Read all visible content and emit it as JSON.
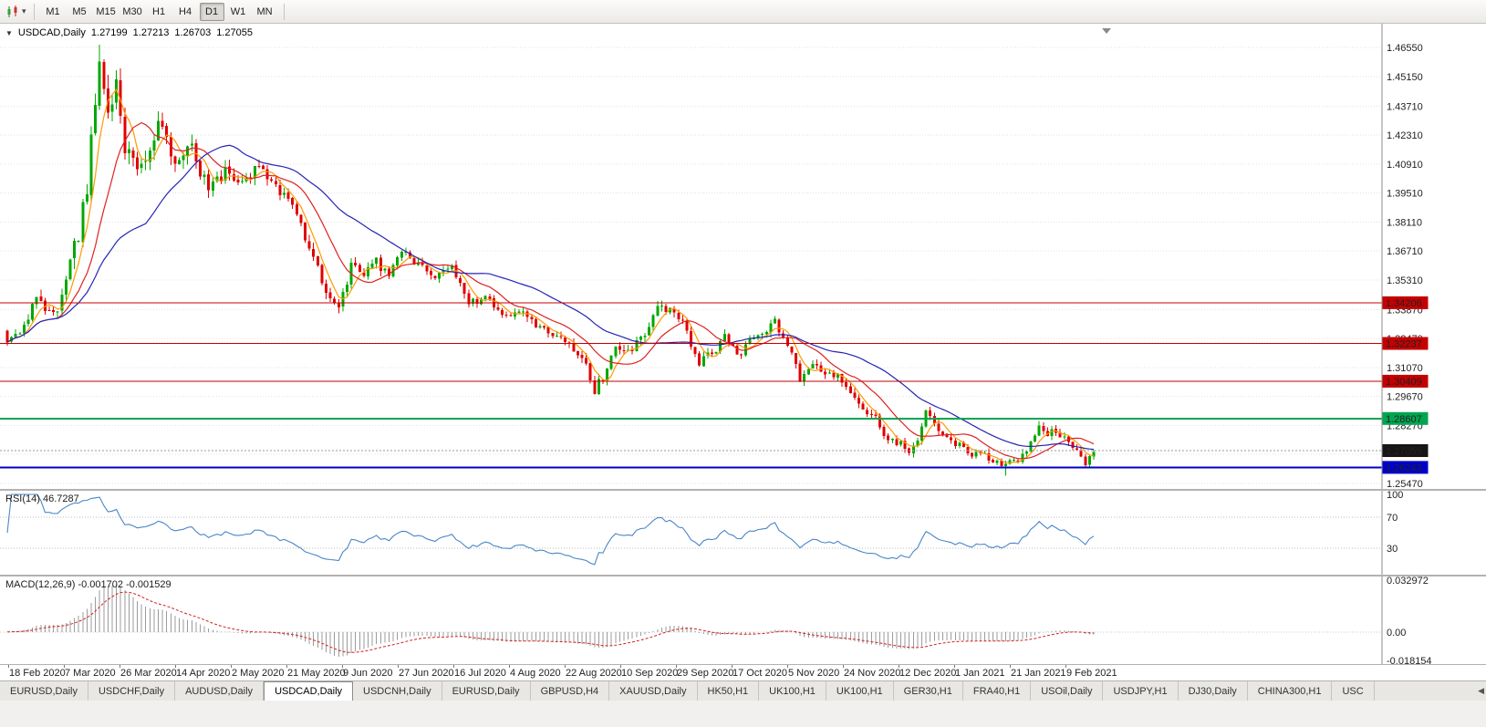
{
  "toolbar": {
    "dropdown_glyph": "▾",
    "timeframes": [
      "M1",
      "M5",
      "M15",
      "M30",
      "H1",
      "H4",
      "D1",
      "W1",
      "MN"
    ],
    "active_timeframe": "D1"
  },
  "chart": {
    "collapse_glyph": "▼",
    "symbol_period": "USDCAD,Daily",
    "quote": {
      "open": "1.27199",
      "high": "1.27213",
      "low": "1.26703",
      "close": "1.27055"
    }
  },
  "price_axis": {
    "ticks": [
      "1.46550",
      "1.45150",
      "1.43710",
      "1.42310",
      "1.40910",
      "1.39510",
      "1.38110",
      "1.36710",
      "1.35310",
      "1.33870",
      "1.32470",
      "1.31070",
      "1.29670",
      "1.28270",
      "1.25470"
    ],
    "hidden_gridlines": [
      1.2687
    ],
    "current_price": {
      "label": "1.27055",
      "value": 1.27055,
      "bg": "#161616",
      "fg": "#ffffff"
    }
  },
  "hlines": [
    {
      "label": "1.34206",
      "value": 1.34206,
      "color": "#c40000",
      "width": 1
    },
    {
      "label": "1.32237",
      "value": 1.32237,
      "color": "#c40000",
      "width": 1
    },
    {
      "label": "1.30409",
      "value": 1.30409,
      "color": "#c40000",
      "width": 1
    },
    {
      "label": "1.28607",
      "value": 1.28607,
      "color": "#00a550",
      "width": 2
    },
    {
      "label": "1.26243",
      "value": 1.26243,
      "color": "#0000c8",
      "width": 2
    }
  ],
  "rsi": {
    "label": "RSI(14) 46.7287",
    "period": 14,
    "current": 46.7287,
    "axis_labels": [
      {
        "text": "100",
        "value": 100
      },
      {
        "text": "70",
        "value": 70
      },
      {
        "text": "30",
        "value": 30
      }
    ],
    "level_lines": [
      70,
      30
    ],
    "line_color": "#4a86c8"
  },
  "macd": {
    "label": "MACD(12,26,9) -0.001702 -0.001529",
    "fast": 12,
    "slow": 26,
    "signal_period": 9,
    "current_values": [
      "-0.001702",
      "-0.001529"
    ],
    "axis_labels": [
      {
        "text": "0.032972",
        "value": 0.032972
      },
      {
        "text": "0.00",
        "value": 0
      },
      {
        "text": "-0.018154",
        "value": -0.018154
      }
    ],
    "range": [
      -0.018154,
      0.032972
    ],
    "hist_color": "#9b9b9b",
    "signal_color": "#d02020"
  },
  "time_axis": {
    "labels": [
      "18 Feb 2020",
      "7 Mar 2020",
      "26 Mar 2020",
      "14 Apr 2020",
      "2 May 2020",
      "21 May 2020",
      "9 Jun 2020",
      "27 Jun 2020",
      "16 Jul 2020",
      "4 Aug 2020",
      "22 Aug 2020",
      "10 Sep 2020",
      "29 Sep 2020",
      "17 Oct 2020",
      "5 Nov 2020",
      "24 Nov 2020",
      "12 Dec 2020",
      "1 Jan 2021",
      "21 Jan 2021",
      "9 Feb 2021"
    ]
  },
  "tabs": {
    "items": [
      "EURUSD,Daily",
      "USDCHF,Daily",
      "AUDUSD,Daily",
      "USDCAD,Daily",
      "USDCNH,Daily",
      "EURUSD,Daily",
      "GBPUSD,H4",
      "XAUUSD,Daily",
      "HK50,H1",
      "UK100,H1",
      "UK100,H1",
      "GER30,H1",
      "FRA40,H1",
      "USOil,Daily",
      "USDJPY,H1",
      "DJ30,Daily",
      "CHINA300,H1",
      "USC"
    ],
    "active_index": 3,
    "scroll_left_glyph": "◀"
  },
  "chart_data": {
    "type": "candlestick",
    "symbol": "USDCAD",
    "timeframe": "Daily",
    "bars": 260,
    "y_range": [
      1.252,
      1.477
    ],
    "max_high": 1.4668,
    "min_low": 1.2585,
    "up_color": "#00a800",
    "down_color": "#e00000",
    "seed": 20210219,
    "close_anchors": [
      [
        0,
        1.3245
      ],
      [
        4,
        1.3305
      ],
      [
        7,
        1.3445
      ],
      [
        10,
        1.336
      ],
      [
        13,
        1.343
      ],
      [
        15,
        1.362
      ],
      [
        17,
        1.375
      ],
      [
        19,
        1.398
      ],
      [
        21,
        1.442
      ],
      [
        22,
        1.46
      ],
      [
        23,
        1.448
      ],
      [
        24,
        1.434
      ],
      [
        26,
        1.447
      ],
      [
        28,
        1.419
      ],
      [
        31,
        1.406
      ],
      [
        34,
        1.419
      ],
      [
        36,
        1.429
      ],
      [
        40,
        1.409
      ],
      [
        44,
        1.416
      ],
      [
        48,
        1.396
      ],
      [
        52,
        1.406
      ],
      [
        56,
        1.399
      ],
      [
        60,
        1.41
      ],
      [
        64,
        1.399
      ],
      [
        67,
        1.391
      ],
      [
        70,
        1.379
      ],
      [
        73,
        1.363
      ],
      [
        76,
        1.349
      ],
      [
        79,
        1.34
      ],
      [
        82,
        1.359
      ],
      [
        85,
        1.356
      ],
      [
        88,
        1.362
      ],
      [
        91,
        1.355
      ],
      [
        94,
        1.367
      ],
      [
        98,
        1.361
      ],
      [
        102,
        1.354
      ],
      [
        106,
        1.359
      ],
      [
        110,
        1.343
      ],
      [
        114,
        1.344
      ],
      [
        118,
        1.336
      ],
      [
        122,
        1.339
      ],
      [
        126,
        1.331
      ],
      [
        130,
        1.326
      ],
      [
        134,
        1.323
      ],
      [
        138,
        1.312
      ],
      [
        140,
        1.3
      ],
      [
        142,
        1.306
      ],
      [
        145,
        1.323
      ],
      [
        148,
        1.318
      ],
      [
        152,
        1.326
      ],
      [
        155,
        1.34
      ],
      [
        158,
        1.338
      ],
      [
        161,
        1.332
      ],
      [
        165,
        1.313
      ],
      [
        168,
        1.318
      ],
      [
        171,
        1.325
      ],
      [
        174,
        1.317
      ],
      [
        177,
        1.323
      ],
      [
        180,
        1.328
      ],
      [
        183,
        1.333
      ],
      [
        186,
        1.321
      ],
      [
        189,
        1.306
      ],
      [
        192,
        1.312
      ],
      [
        195,
        1.309
      ],
      [
        198,
        1.307
      ],
      [
        201,
        1.3
      ],
      [
        204,
        1.292
      ],
      [
        207,
        1.286
      ],
      [
        210,
        1.276
      ],
      [
        213,
        1.274
      ],
      [
        215,
        1.27
      ],
      [
        217,
        1.275
      ],
      [
        219,
        1.288
      ],
      [
        221,
        1.283
      ],
      [
        223,
        1.28
      ],
      [
        226,
        1.274
      ],
      [
        229,
        1.269
      ],
      [
        232,
        1.27
      ],
      [
        236,
        1.264
      ],
      [
        239,
        1.265
      ],
      [
        242,
        1.268
      ],
      [
        244,
        1.274
      ],
      [
        246,
        1.284
      ],
      [
        248,
        1.279
      ],
      [
        250,
        1.28
      ],
      [
        253,
        1.276
      ],
      [
        255,
        1.271
      ],
      [
        257,
        1.2625
      ],
      [
        259,
        1.2706
      ]
    ],
    "volatility_anchors": [
      [
        0,
        0.005
      ],
      [
        12,
        0.007
      ],
      [
        18,
        0.012
      ],
      [
        26,
        0.013
      ],
      [
        34,
        0.009
      ],
      [
        50,
        0.007
      ],
      [
        70,
        0.006
      ],
      [
        90,
        0.005
      ],
      [
        120,
        0.0045
      ],
      [
        150,
        0.005
      ],
      [
        180,
        0.0045
      ],
      [
        210,
        0.004
      ],
      [
        240,
        0.0045
      ],
      [
        259,
        0.004
      ]
    ],
    "moving_averages": [
      {
        "name": "ma-fast",
        "period": 5,
        "color": "#ff9900"
      },
      {
        "name": "ma-mid",
        "period": 13,
        "color": "#dd2222"
      },
      {
        "name": "ma-slow",
        "period": 34,
        "color": "#2525b5"
      }
    ]
  }
}
